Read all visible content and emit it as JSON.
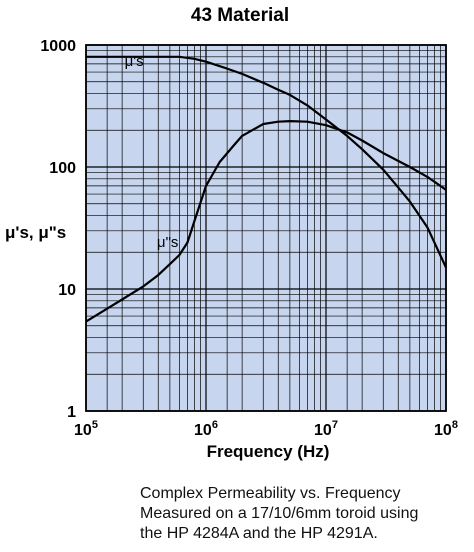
{
  "chart_data": {
    "type": "line",
    "title": "43 Material",
    "xlabel": "Frequency (Hz)",
    "ylabel": "μ's, μ\"s",
    "x_scale": "log",
    "y_scale": "log",
    "xlim": [
      100000,
      100000000
    ],
    "ylim": [
      1,
      1000
    ],
    "x_ticks": [
      {
        "value": 100000,
        "base": "10",
        "exp": "5"
      },
      {
        "value": 1000000,
        "base": "10",
        "exp": "6"
      },
      {
        "value": 10000000,
        "base": "10",
        "exp": "7"
      },
      {
        "value": 100000000,
        "base": "10",
        "exp": "8"
      }
    ],
    "y_ticks": [
      {
        "value": 1,
        "label": "1"
      },
      {
        "value": 10,
        "label": "10"
      },
      {
        "value": 100,
        "label": "100"
      },
      {
        "value": 1000,
        "label": "1000"
      }
    ],
    "grid": true,
    "background_color": "#c7d5ee",
    "line_color": "#000000",
    "series": [
      {
        "name": "μ's",
        "label_at": {
          "x": 210000,
          "y": 670
        },
        "points": [
          [
            100000,
            800
          ],
          [
            200000,
            800
          ],
          [
            400000,
            800
          ],
          [
            600000,
            800
          ],
          [
            800000,
            770
          ],
          [
            1000000,
            730
          ],
          [
            1500000,
            640
          ],
          [
            2000000,
            580
          ],
          [
            3000000,
            490
          ],
          [
            4000000,
            430
          ],
          [
            5000000,
            390
          ],
          [
            7000000,
            320
          ],
          [
            10000000,
            245
          ],
          [
            15000000,
            180
          ],
          [
            20000000,
            140
          ],
          [
            30000000,
            95
          ],
          [
            40000000,
            68
          ],
          [
            50000000,
            52
          ],
          [
            70000000,
            32
          ],
          [
            100000000,
            15
          ]
        ]
      },
      {
        "name": "μ\"s",
        "label_at": {
          "x": 390000,
          "y": 22
        },
        "points": [
          [
            100000,
            5.4
          ],
          [
            150000,
            6.9
          ],
          [
            200000,
            8.2
          ],
          [
            300000,
            10.5
          ],
          [
            400000,
            13
          ],
          [
            500000,
            16
          ],
          [
            600000,
            19
          ],
          [
            700000,
            24
          ],
          [
            800000,
            36
          ],
          [
            1000000,
            70
          ],
          [
            1300000,
            110
          ],
          [
            1700000,
            150
          ],
          [
            2000000,
            180
          ],
          [
            3000000,
            225
          ],
          [
            4000000,
            235
          ],
          [
            5000000,
            238
          ],
          [
            7000000,
            235
          ],
          [
            10000000,
            220
          ],
          [
            15000000,
            192
          ],
          [
            20000000,
            165
          ],
          [
            30000000,
            130
          ],
          [
            50000000,
            100
          ],
          [
            70000000,
            83
          ],
          [
            100000000,
            65
          ]
        ]
      }
    ]
  },
  "caption": {
    "lines": [
      "Complex Permeability vs. Frequency",
      "Measured on a 17/10/6mm toroid using",
      "the HP 4284A and the HP 4291A."
    ]
  }
}
